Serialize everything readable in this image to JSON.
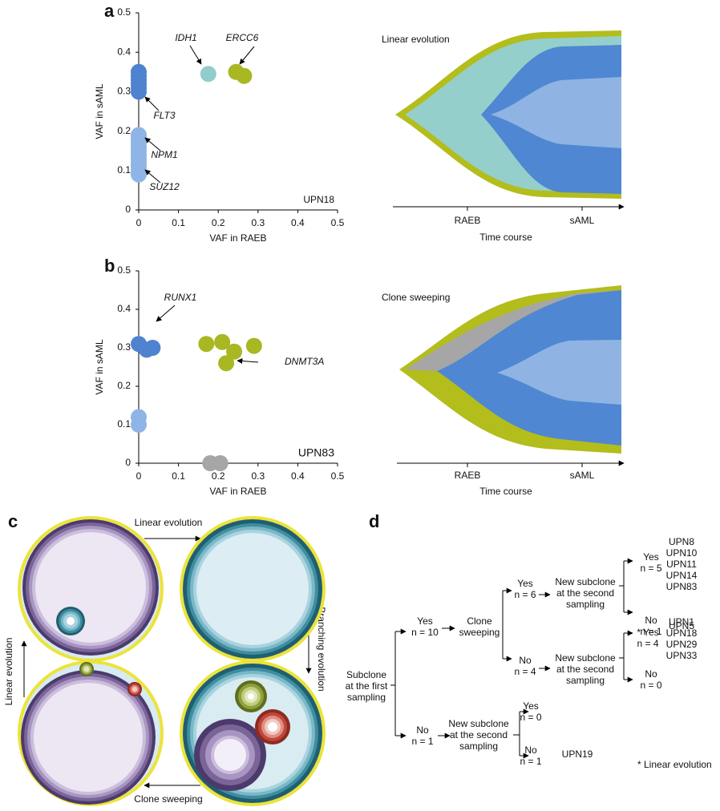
{
  "panel_labels": [
    "a",
    "b",
    "c",
    "d"
  ],
  "chart_data": [
    {
      "type": "scatter",
      "xlabel": "VAF in RAEB",
      "ylabel": "VAF in sAML",
      "xlim": [
        0,
        0.5
      ],
      "ylim": [
        0,
        0.5
      ],
      "xticks": [
        0,
        0.1,
        0.2,
        0.3,
        0.4,
        0.5
      ],
      "yticks": [
        0,
        0.1,
        0.2,
        0.3,
        0.4,
        0.5
      ],
      "sample_label": "UPN18",
      "series": [
        {
          "color": "#4f83d0",
          "x": [
            0,
            0,
            0,
            0,
            0,
            0
          ],
          "values": [
            0.35,
            0.34,
            0.33,
            0.32,
            0.31,
            0.3
          ]
        },
        {
          "color": "#8fb5e6",
          "x": [
            0,
            0,
            0,
            0,
            0,
            0,
            0,
            0,
            0,
            0,
            0
          ],
          "values": [
            0.19,
            0.18,
            0.17,
            0.16,
            0.15,
            0.14,
            0.13,
            0.12,
            0.11,
            0.1,
            0.09
          ]
        },
        {
          "color": "#92cccb",
          "x": [
            0.175
          ],
          "values": [
            0.345
          ]
        },
        {
          "color": "#a9b723",
          "x": [
            0.245,
            0.265
          ],
          "values": [
            0.35,
            0.34
          ]
        }
      ],
      "annotations": [
        "IDH1",
        "ERCC6",
        "FLT3",
        "NPM1",
        "SUZ12"
      ]
    },
    {
      "type": "scatter",
      "xlabel": "VAF in RAEB",
      "ylabel": "VAF in sAML",
      "xlim": [
        0,
        0.5
      ],
      "ylim": [
        0,
        0.5
      ],
      "xticks": [
        0,
        0.1,
        0.2,
        0.3,
        0.4,
        0.5
      ],
      "yticks": [
        0,
        0.1,
        0.2,
        0.3,
        0.4,
        0.5
      ],
      "sample_label": "UPN83",
      "series": [
        {
          "color": "#4f83d0",
          "x": [
            0,
            0.02,
            0.035
          ],
          "values": [
            0.31,
            0.295,
            0.3
          ]
        },
        {
          "color": "#8fb5e6",
          "x": [
            0,
            0
          ],
          "values": [
            0.12,
            0.1
          ]
        },
        {
          "color": "#a9b723",
          "x": [
            0.17,
            0.21,
            0.24,
            0.29,
            0.22
          ],
          "values": [
            0.31,
            0.315,
            0.29,
            0.305,
            0.26
          ]
        },
        {
          "color": "#a6a6a6",
          "x": [
            0.18,
            0.205
          ],
          "values": [
            0,
            0
          ]
        }
      ],
      "annotations": [
        "RUNX1",
        "DNMT3A"
      ]
    }
  ],
  "stream_plots": [
    {
      "title": "Linear evolution",
      "categories": [
        "RAEB",
        "sAML"
      ],
      "xlabel": "Time course"
    },
    {
      "title": "Clone sweeping",
      "categories": [
        "RAEB",
        "sAML"
      ],
      "xlabel": "Time course"
    }
  ],
  "clone_diagram": {
    "arrows": [
      "Linear evolution",
      "Branching evolution",
      "Clone sweeping",
      "Linear evolution"
    ]
  },
  "tree": {
    "nodes": [
      {
        "lines": [
          "Subclone",
          "at the first",
          "sampling"
        ]
      },
      {
        "lines": [
          "Yes",
          "n = 10"
        ]
      },
      {
        "lines": [
          "Clone",
          "sweeping"
        ]
      },
      {
        "lines": [
          "Yes",
          "n = 6"
        ]
      },
      {
        "lines": [
          "New subclone",
          "at the second",
          "sampling"
        ]
      },
      {
        "lines": [
          "Yes",
          "n = 5"
        ]
      },
      {
        "lines": [
          "UPN8",
          "UPN10",
          "UPN11",
          "UPN14",
          "UPN83"
        ]
      },
      {
        "lines": [
          "No",
          "n = 1"
        ]
      },
      {
        "lines": [
          "UPN5"
        ]
      },
      {
        "lines": [
          "No",
          "n = 4"
        ]
      },
      {
        "lines": [
          "New subclone",
          "at the second",
          "sampling"
        ]
      },
      {
        "lines": [
          "* Yes",
          "n = 4"
        ]
      },
      {
        "lines": [
          "UPN1",
          "UPN18",
          "UPN29",
          "UPN33"
        ]
      },
      {
        "lines": [
          "No",
          "n = 0"
        ]
      },
      {
        "lines": [
          "No",
          "n = 1"
        ]
      },
      {
        "lines": [
          "New subclone",
          "at the second",
          "sampling"
        ]
      },
      {
        "lines": [
          "Yes",
          "n = 0"
        ]
      },
      {
        "lines": [
          "No",
          "n = 1"
        ]
      },
      {
        "lines": [
          "UPN19"
        ]
      }
    ],
    "footnote": "* Linear evolution"
  }
}
